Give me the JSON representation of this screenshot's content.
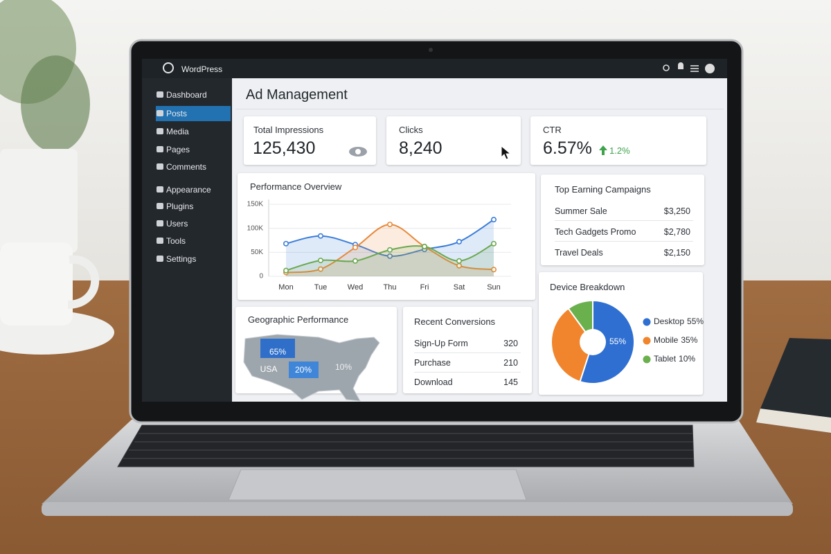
{
  "header": {
    "brand": "WordPress"
  },
  "sidebar": {
    "items": [
      "Dashboard",
      "Posts",
      "Media",
      "Pages",
      "Comments",
      "Appearance",
      "Plugins",
      "Users",
      "Tools",
      "Settings"
    ],
    "active": 1
  },
  "page": {
    "title": "Ad Management"
  },
  "stats": [
    {
      "label": "Total Impressions",
      "value": "125,430"
    },
    {
      "label": "Clicks",
      "value": "8,240"
    },
    {
      "label": "CTR",
      "value": "6.57%",
      "change": "1.2%"
    }
  ],
  "chart_data": [
    {
      "type": "line",
      "title": "Performance Overview",
      "categories": [
        "Mon",
        "Tue",
        "Wed",
        "Thu",
        "Fri",
        "Sat",
        "Sun"
      ],
      "series": [
        {
          "color": "#3b7dd8",
          "values": [
            68000,
            84000,
            66000,
            42000,
            56000,
            72000,
            118000
          ]
        },
        {
          "color": "#e8883a",
          "values": [
            8000,
            15000,
            60000,
            108000,
            62000,
            22000,
            14000
          ]
        },
        {
          "color": "#6aa84f",
          "values": [
            12000,
            33000,
            32000,
            55000,
            62000,
            32000,
            68000
          ]
        }
      ],
      "ylim": [
        0,
        160000
      ],
      "yticks": [
        0,
        {
          "value": 50000,
          "label": "50K"
        },
        {
          "value": 100000,
          "label": "100K"
        },
        {
          "value": 150000,
          "label": "150K"
        }
      ],
      "grid": true
    },
    {
      "type": "pie",
      "title": "Device Breakdown",
      "labels": [
        "Desktop",
        "Mobile",
        "Tablet"
      ],
      "values": [
        55,
        35,
        10
      ],
      "value_labels": [
        "55%",
        "35%",
        "10%"
      ],
      "colors": [
        "#2f6fd1",
        "#f0852d",
        "#6ab04c"
      ]
    }
  ],
  "geographic": {
    "title": "Geographic Performance",
    "country": "USA",
    "regions": [
      "65%",
      "20%",
      "10%"
    ]
  },
  "campaigns": {
    "title": "Top Earning Campaigns",
    "rows": [
      [
        "Summer Sale",
        "$3,250"
      ],
      [
        "Tech Gadgets Promo",
        "$2,780"
      ],
      [
        "Travel Deals",
        "$2,150"
      ]
    ]
  },
  "conversions": {
    "title": "Recent Conversions",
    "rows": [
      [
        "Sign-Up Form",
        "320"
      ],
      [
        "Purchase",
        "210"
      ],
      [
        "Download",
        "145"
      ]
    ]
  }
}
